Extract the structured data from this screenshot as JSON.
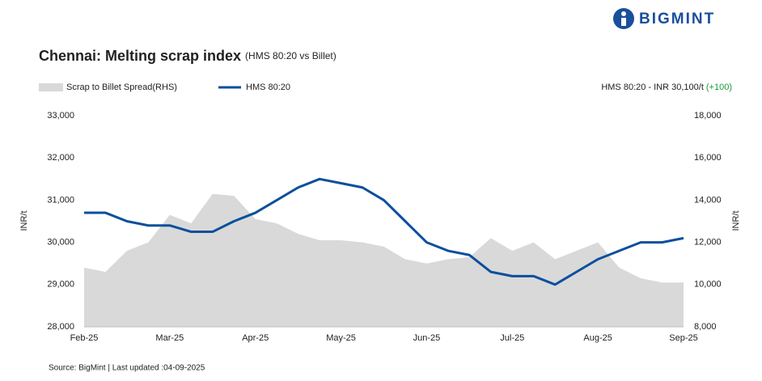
{
  "brand": "BIGMINT",
  "chart_data": {
    "type": "line",
    "title": "Chennai: Melting scrap index",
    "subtitle": "(HMS 80:20 vs Billet)",
    "annotation": "HMS 80:20 - INR 30,100/t",
    "annotation_change": "(+100)",
    "source": "Source: BigMint | Last updated :04-09-2025",
    "ylabel": "INR/t",
    "y2label": "INR/t",
    "categories": [
      "Feb-25",
      null,
      null,
      null,
      "Mar-25",
      null,
      null,
      null,
      "Apr-25",
      null,
      null,
      null,
      "May-25",
      null,
      null,
      null,
      "Jun-25",
      null,
      null,
      null,
      "Jul-25",
      null,
      null,
      null,
      "Aug-25",
      null,
      null,
      null,
      "Sep-25"
    ],
    "series": [
      {
        "name": "Scrap to Billet Spread(RHS)",
        "color": "#d9d9d9",
        "axis": "y2",
        "kind": "area",
        "values": [
          10800,
          10600,
          11600,
          12000,
          13300,
          12900,
          14300,
          14200,
          13100,
          12900,
          12400,
          12100,
          12100,
          12000,
          11800,
          11200,
          11000,
          11200,
          11300,
          12200,
          11600,
          12000,
          11200,
          11600,
          12000,
          10800,
          10300,
          10100,
          10100
        ]
      },
      {
        "name": "HMS 80:20",
        "color": "#0b4f9c",
        "kind": "line",
        "values": [
          30700,
          30700,
          30500,
          30400,
          30400,
          30250,
          30250,
          30500,
          30700,
          31000,
          31300,
          31500,
          31400,
          31300,
          31000,
          30500,
          30000,
          29800,
          29700,
          29300,
          29200,
          29200,
          29000,
          29300,
          29600,
          29800,
          30000,
          30000,
          30100
        ]
      }
    ],
    "ylim": [
      28000,
      33000
    ],
    "yticks": [
      {
        "value": 28000,
        "label": "28,000"
      },
      {
        "value": 29000,
        "label": "29,000"
      },
      {
        "value": 30000,
        "label": "30,000"
      },
      {
        "value": 31000,
        "label": "31,000"
      },
      {
        "value": 32000,
        "label": "32,000"
      },
      {
        "value": 33000,
        "label": "33,000"
      }
    ],
    "y2lim": [
      8000,
      18000
    ],
    "y2ticks": [
      {
        "value": 8000,
        "label": "8,000"
      },
      {
        "value": 10000,
        "label": "10,000"
      },
      {
        "value": 12000,
        "label": "12,000"
      },
      {
        "value": 14000,
        "label": "14,000"
      },
      {
        "value": 16000,
        "label": "16,000"
      },
      {
        "value": 18000,
        "label": "18,000"
      }
    ]
  }
}
